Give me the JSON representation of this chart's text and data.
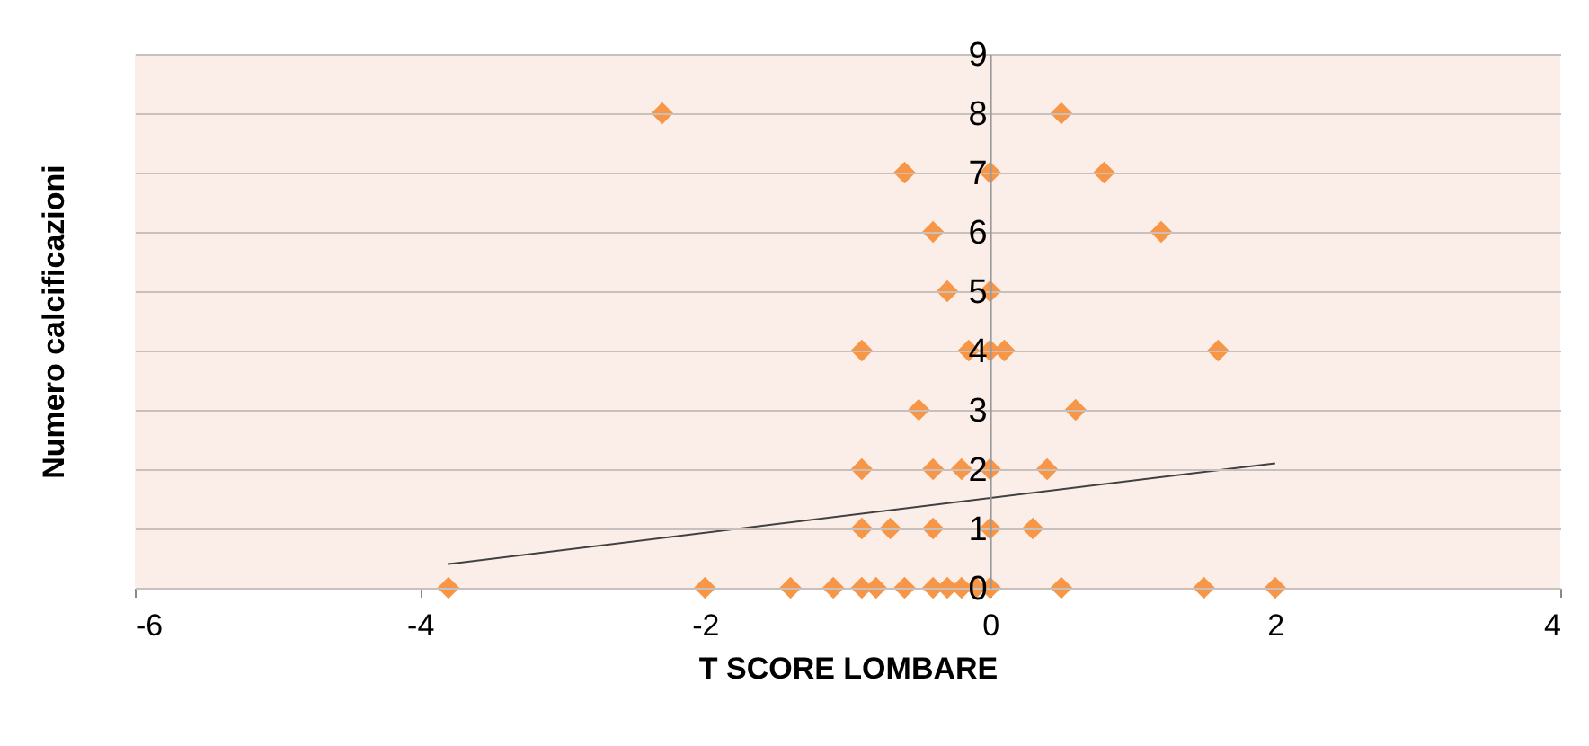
{
  "chart_data": {
    "type": "scatter",
    "xlabel": "T SCORE LOMBARE",
    "ylabel": "Numero calcificazioni",
    "xlim": [
      -6,
      4
    ],
    "xticks": [
      -6,
      -4,
      -2,
      0,
      2,
      4
    ],
    "ylim": [
      0,
      9
    ],
    "yticks": [
      0,
      1,
      2,
      3,
      4,
      5,
      6,
      7,
      8,
      9
    ],
    "grid": "y",
    "marker": "diamond",
    "series": [
      {
        "color": "#f79646",
        "x": [
          -2.3,
          0.5,
          -0.6,
          0,
          0.8,
          -0.4,
          1.2,
          -0.3,
          0,
          -0.9,
          -0.15,
          0,
          0.1,
          1.6,
          -0.5,
          0.6,
          -0.9,
          -0.4,
          -0.2,
          0,
          0.4,
          -0.9,
          -0.7,
          -0.4,
          0,
          0.3,
          -3.8,
          -2.0,
          -1.4,
          -1.1,
          -0.9,
          -0.8,
          -0.6,
          -0.4,
          -0.3,
          -0.2,
          -0.1,
          0,
          0.5,
          1.5,
          2.0
        ],
        "values": [
          8,
          8,
          7,
          7,
          7,
          6,
          6,
          5,
          5,
          4,
          4,
          4,
          4,
          4,
          3,
          3,
          2,
          2,
          2,
          2,
          2,
          1,
          1,
          1,
          1,
          1,
          0,
          0,
          0,
          0,
          0,
          0,
          0,
          0,
          0,
          0,
          0,
          0,
          0,
          0,
          0
        ]
      },
      {
        "type": "line",
        "color": "#404040",
        "marker": "none",
        "x": [
          -3.8,
          2.0
        ],
        "values": [
          0.4,
          2.1
        ]
      }
    ]
  }
}
